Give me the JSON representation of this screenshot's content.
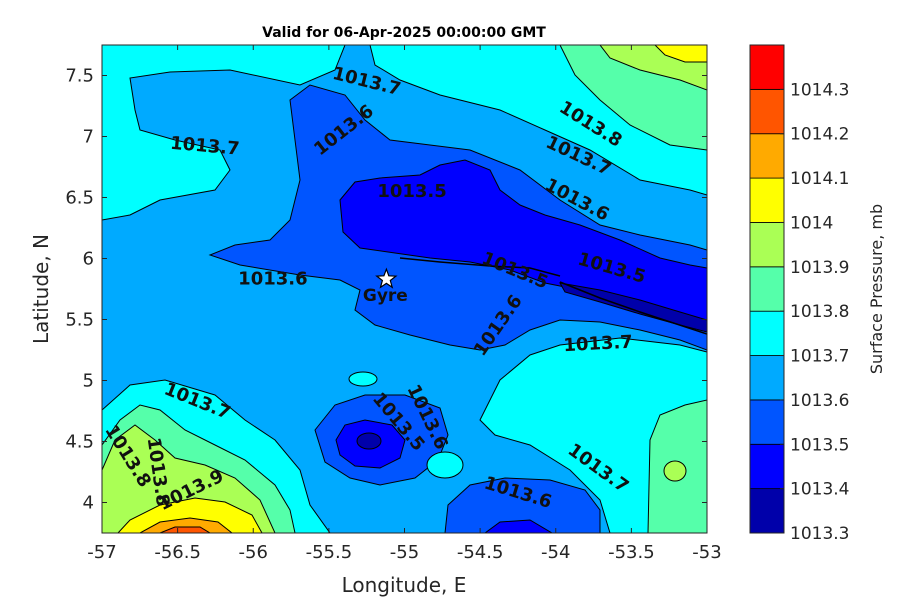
{
  "chart_data": {
    "type": "contourf",
    "title": "Valid for 06-Apr-2025 00:00:00 GMT",
    "xlabel": "Longitude, E",
    "ylabel": "Latitude, N",
    "xlim": [
      -57,
      -53
    ],
    "ylim": [
      3.75,
      7.75
    ],
    "xticks": [
      -57,
      -56.5,
      -56,
      -55.5,
      -55,
      -54.5,
      -54,
      -53.5,
      -53
    ],
    "yticks": [
      4,
      4.5,
      5,
      5.5,
      6,
      6.5,
      7,
      7.5
    ],
    "xtick_labels": [
      "-57",
      "-56.5",
      "-56",
      "-55.5",
      "-55",
      "-54.5",
      "-54",
      "-53.5",
      "-53"
    ],
    "ytick_labels": [
      "4",
      "4.5",
      "5",
      "5.5",
      "6",
      "6.5",
      "7",
      "7.5"
    ],
    "colorbar": {
      "label": "Surface Pressure, mb",
      "levels": [
        1013.3,
        1013.4,
        1013.5,
        1013.6,
        1013.7,
        1013.8,
        1013.9,
        1014,
        1014.1,
        1014.2,
        1014.3
      ],
      "tick_labels": [
        "1013.3",
        "1013.4",
        "1013.5",
        "1013.6",
        "1013.7",
        "1013.8",
        "1013.9",
        "1014",
        "1014.1",
        "1014.2",
        "1014.3"
      ],
      "colors": [
        "#0000aa",
        "#0000ff",
        "#0055ff",
        "#00aaff",
        "#00ffff",
        "#55ffaa",
        "#aaff55",
        "#ffff00",
        "#ffaa00",
        "#ff5500",
        "#ff0000"
      ]
    },
    "contour_labels": [
      {
        "text": "1013.7",
        "x": -55.25,
        "y": 7.45,
        "angle": 14
      },
      {
        "text": "1013.6",
        "x": -55.4,
        "y": 7.05,
        "angle": -38
      },
      {
        "text": "1013.7",
        "x": -56.32,
        "y": 6.92,
        "angle": 5
      },
      {
        "text": "1013.5",
        "x": -54.95,
        "y": 6.55,
        "angle": 0
      },
      {
        "text": "1013.8",
        "x": -53.77,
        "y": 7.1,
        "angle": 32
      },
      {
        "text": "1013.7",
        "x": -53.85,
        "y": 6.84,
        "angle": 25
      },
      {
        "text": "1013.6",
        "x": -53.86,
        "y": 6.48,
        "angle": 28
      },
      {
        "text": "1013.6",
        "x": -55.87,
        "y": 5.83,
        "angle": 0
      },
      {
        "text": "1013.5",
        "x": -54.27,
        "y": 5.9,
        "angle": 22
      },
      {
        "text": "1013.5",
        "x": -53.63,
        "y": 5.92,
        "angle": 16
      },
      {
        "text": "1013.6",
        "x": -54.38,
        "y": 5.45,
        "angle": -55
      },
      {
        "text": "1013.7",
        "x": -53.72,
        "y": 5.3,
        "angle": -3
      },
      {
        "text": "1013.7",
        "x": -56.37,
        "y": 4.83,
        "angle": 22
      },
      {
        "text": "1013.6",
        "x": -54.85,
        "y": 4.7,
        "angle": 64
      },
      {
        "text": "1013.5",
        "x": -55.04,
        "y": 4.66,
        "angle": 50
      },
      {
        "text": "1013.8",
        "x": -56.83,
        "y": 4.38,
        "angle": 58
      },
      {
        "text": "1013.8",
        "x": -56.63,
        "y": 4.25,
        "angle": 82
      },
      {
        "text": "1013.9",
        "x": -56.41,
        "y": 4.1,
        "angle": -26
      },
      {
        "text": "1013.7",
        "x": -53.72,
        "y": 4.28,
        "angle": 36
      },
      {
        "text": "1013.6",
        "x": -54.25,
        "y": 4.08,
        "angle": 17
      }
    ],
    "marker": {
      "label": "Gyre",
      "lon": -55.12,
      "lat": 5.83,
      "symbol": "star"
    }
  }
}
